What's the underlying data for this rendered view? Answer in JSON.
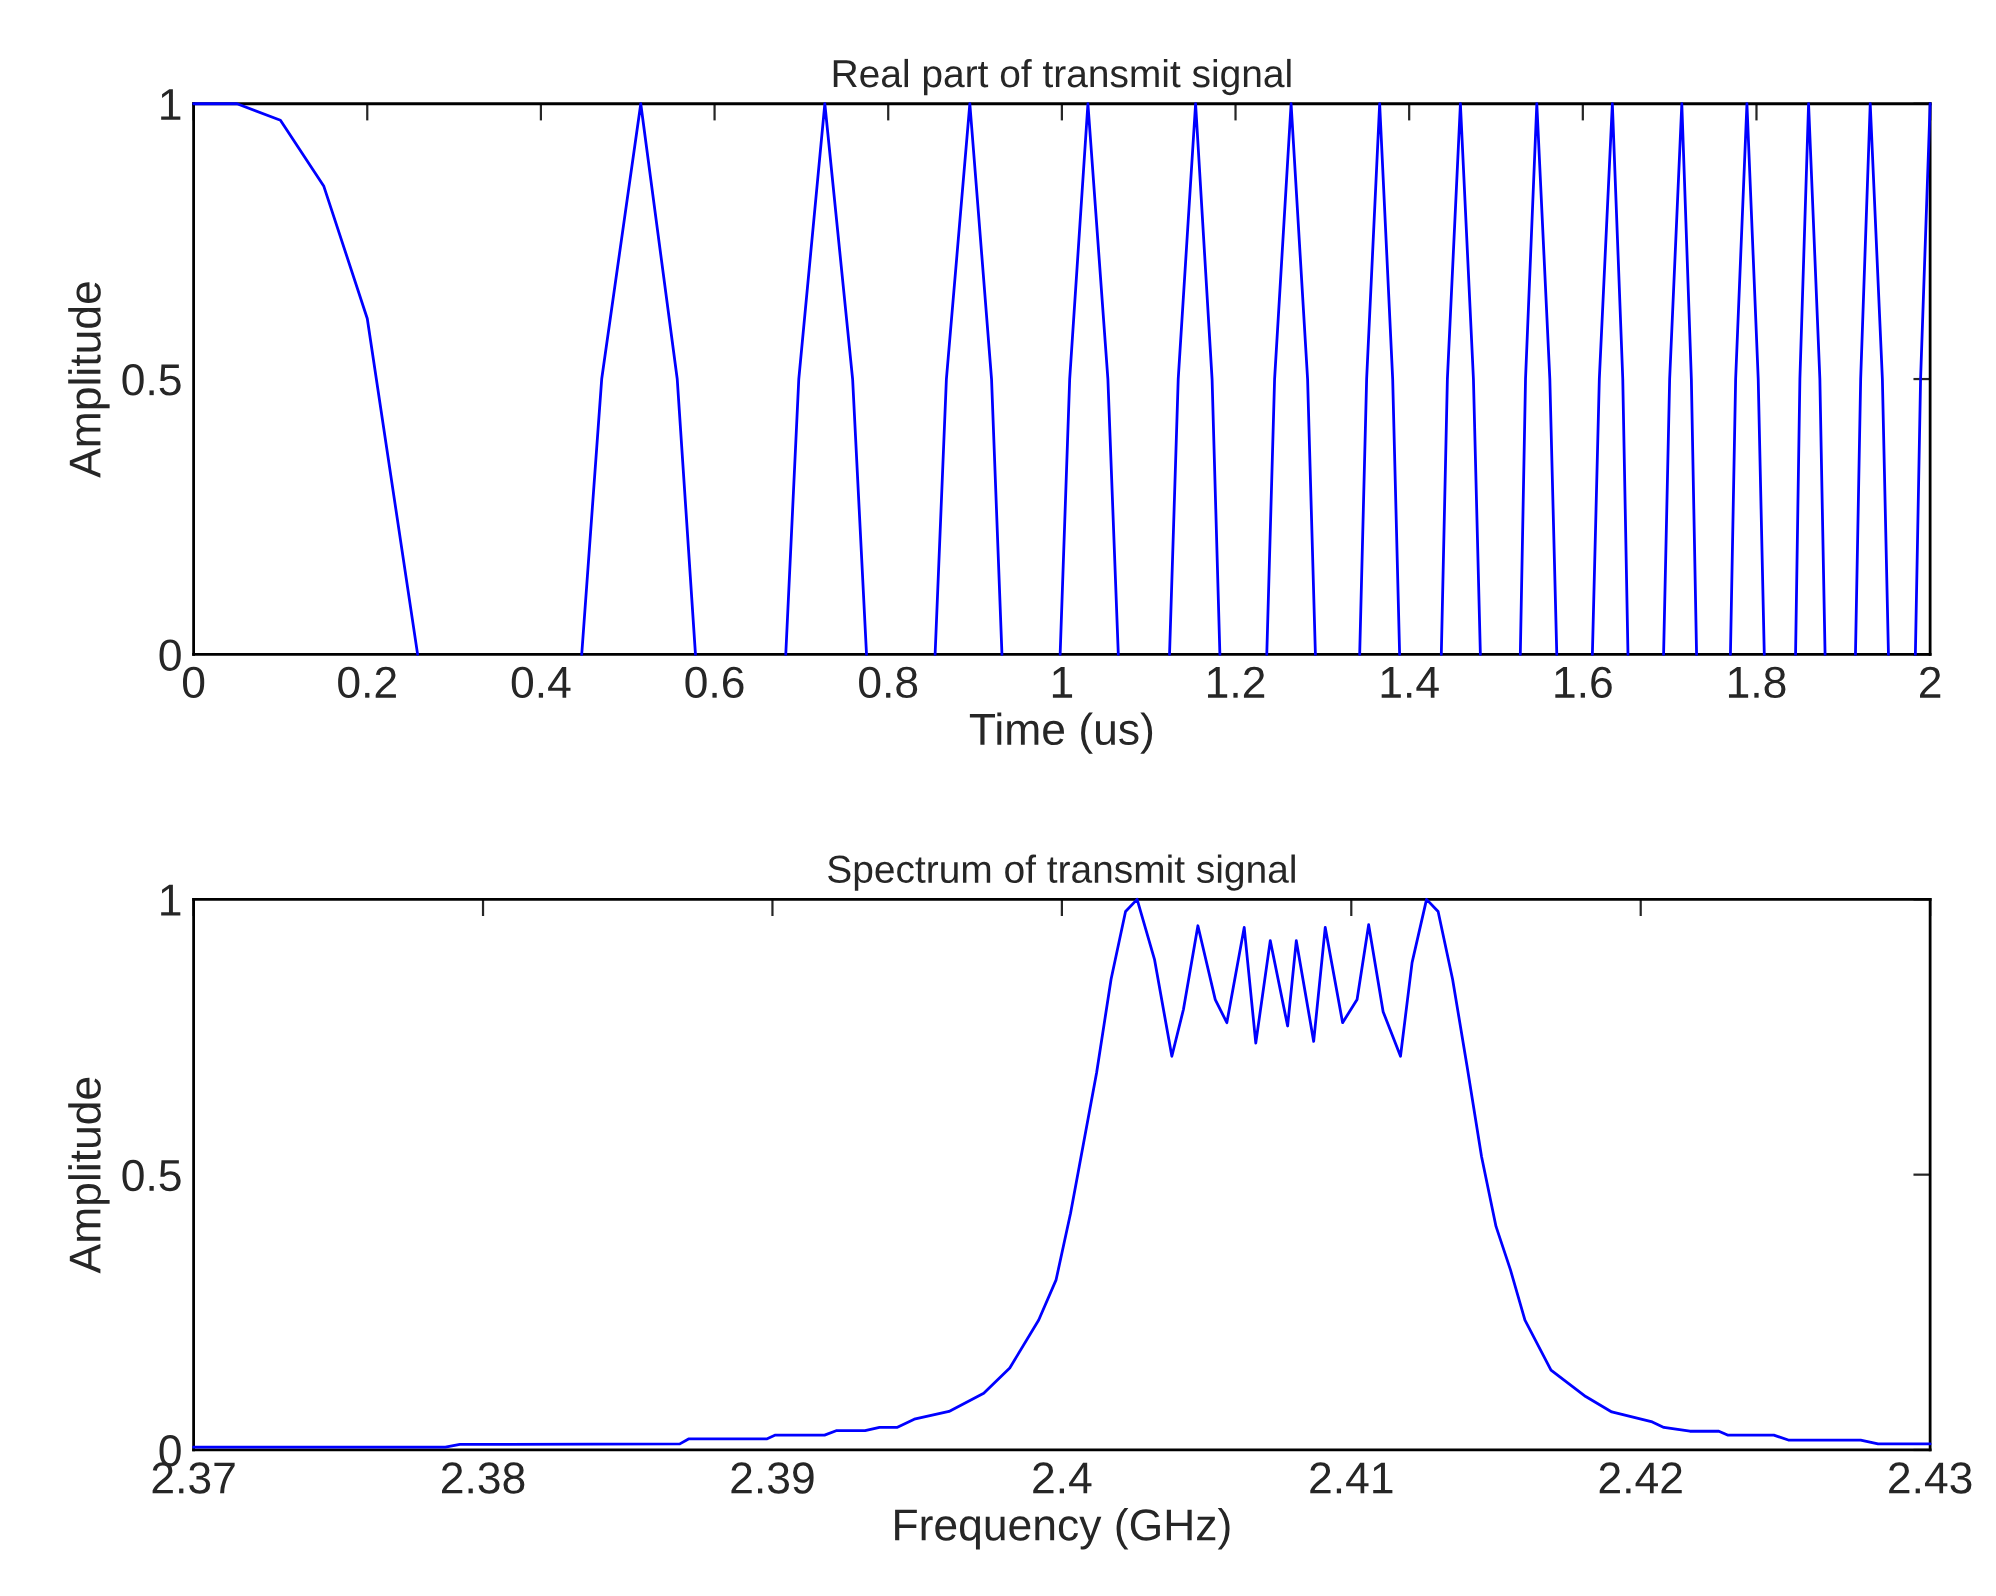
{
  "chart_data": [
    {
      "type": "line",
      "title": "Real part of transmit signal",
      "xlabel": "Time (us)",
      "ylabel": "Amplitude",
      "xlim": [
        0,
        2
      ],
      "ylim": [
        0,
        1
      ],
      "xticks": [
        0,
        0.2,
        0.4,
        0.6,
        0.8,
        1,
        1.2,
        1.4,
        1.6,
        1.8,
        2
      ],
      "yticks": [
        0,
        0.5,
        1
      ],
      "series": [
        {
          "color": "#0000ff",
          "x": [
            0,
            0.05,
            0.1,
            0.15,
            0.2,
            0.258,
            0.35,
            0.447,
            0.47,
            0.515,
            0.557,
            0.578,
            0.63,
            0.682,
            0.697,
            0.727,
            0.759,
            0.775,
            0.81,
            0.854,
            0.867,
            0.894,
            0.919,
            0.931,
            0.96,
            0.998,
            1.009,
            1.03,
            1.053,
            1.065,
            1.09,
            1.124,
            1.134,
            1.154,
            1.173,
            1.182,
            1.21,
            1.236,
            1.245,
            1.264,
            1.283,
            1.292,
            1.31,
            1.343,
            1.351,
            1.366,
            1.381,
            1.389,
            1.41,
            1.437,
            1.444,
            1.459,
            1.474,
            1.482,
            1.505,
            1.528,
            1.534,
            1.547,
            1.562,
            1.57,
            1.59,
            1.611,
            1.619,
            1.634,
            1.646,
            1.652,
            1.67,
            1.693,
            1.7,
            1.714,
            1.725,
            1.731,
            1.75,
            1.77,
            1.776,
            1.789,
            1.802,
            1.809,
            1.83,
            1.845,
            1.85,
            1.86,
            1.873,
            1.879,
            1.9,
            1.914,
            1.92,
            1.931,
            1.945,
            1.952,
            1.97,
            1.983,
            1.989,
            2.0
          ],
          "values": [
            1,
            1,
            0.97,
            0.85,
            0.61,
            0,
            null,
            0,
            0.5,
            1,
            0.5,
            0,
            null,
            0,
            0.5,
            1,
            0.5,
            0,
            null,
            0,
            0.5,
            1,
            0.5,
            0,
            null,
            0,
            0.5,
            1,
            0.5,
            0,
            null,
            0,
            0.5,
            1,
            0.5,
            0,
            null,
            0,
            0.5,
            1,
            0.5,
            0,
            null,
            0,
            0.5,
            1,
            0.5,
            0,
            null,
            0,
            0.5,
            1,
            0.5,
            0,
            null,
            0,
            0.5,
            1,
            0.5,
            0,
            null,
            0,
            0.5,
            1,
            0.5,
            0,
            null,
            0,
            0.5,
            1,
            0.5,
            0,
            null,
            0,
            0.5,
            1,
            0.5,
            0,
            null,
            0,
            0.5,
            1,
            0.5,
            0,
            null,
            0,
            0.5,
            1,
            0.5,
            0,
            null,
            0,
            0.5,
            1
          ]
        }
      ]
    },
    {
      "type": "line",
      "title": "Spectrum of transmit signal",
      "xlabel": "Frequency (GHz)",
      "ylabel": "Amplitude",
      "xlim": [
        2.37,
        2.43
      ],
      "ylim": [
        0,
        1
      ],
      "xticks": [
        2.37,
        2.38,
        2.39,
        2.4,
        2.41,
        2.42,
        2.43
      ],
      "yticks": [
        0,
        0.5,
        1
      ],
      "series": [
        {
          "color": "#0000ff",
          "x": [
            2.37,
            2.3787,
            2.3792,
            2.3868,
            2.3871,
            2.3898,
            2.3901,
            2.3918,
            2.3922,
            2.3932,
            2.3937,
            2.3943,
            2.3949,
            2.3961,
            2.3973,
            2.3982,
            2.3992,
            2.3998,
            2.4003,
            2.4006,
            2.4012,
            2.4017,
            2.4022,
            2.4026,
            2.4032,
            2.4038,
            2.4042,
            2.4047,
            2.4053,
            2.4057,
            2.4063,
            2.4067,
            2.4072,
            2.4078,
            2.4081,
            2.4087,
            2.4091,
            2.4097,
            2.4102,
            2.4106,
            2.4111,
            2.4117,
            2.4121,
            2.4126,
            2.413,
            2.4135,
            2.414,
            2.4145,
            2.415,
            2.4155,
            2.416,
            2.4169,
            2.4181,
            2.419,
            2.4204,
            2.4208,
            2.4217,
            2.4227,
            2.423,
            2.4246,
            2.4251,
            2.4276,
            2.4282,
            2.43
          ],
          "values": [
            0.005,
            0.005,
            0.01,
            0.011,
            0.02,
            0.02,
            0.027,
            0.027,
            0.035,
            0.035,
            0.041,
            0.041,
            0.056,
            0.07,
            0.103,
            0.149,
            0.236,
            0.309,
            0.43,
            0.515,
            0.685,
            0.855,
            0.978,
            1.0,
            0.891,
            0.715,
            0.8,
            0.952,
            0.818,
            0.776,
            0.949,
            0.739,
            0.925,
            0.77,
            0.925,
            0.742,
            0.949,
            0.776,
            0.818,
            0.954,
            0.796,
            0.715,
            0.885,
            1.0,
            0.978,
            0.855,
            0.697,
            0.533,
            0.406,
            0.327,
            0.236,
            0.145,
            0.097,
            0.069,
            0.051,
            0.041,
            0.034,
            0.034,
            0.027,
            0.027,
            0.018,
            0.018,
            0.011,
            0.011
          ]
        }
      ]
    }
  ]
}
